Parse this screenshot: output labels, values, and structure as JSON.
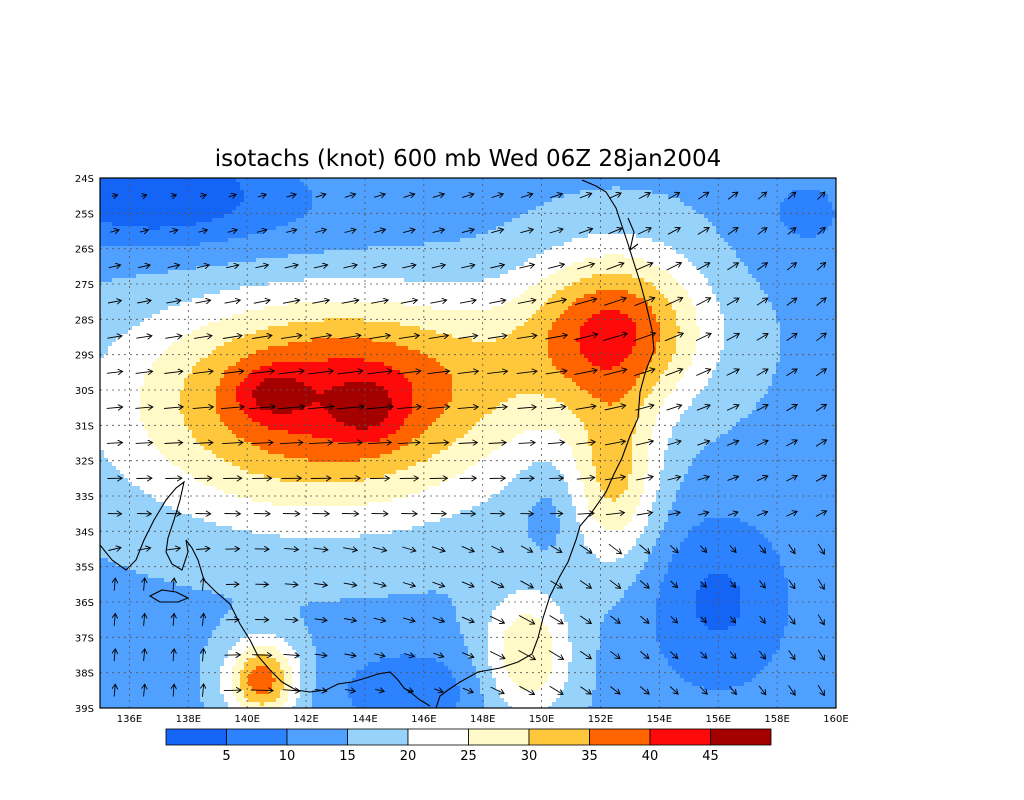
{
  "title": "isotachs (knot) 600 mb Wed 06Z 28jan2004",
  "lat_labels": [
    "24S",
    "25S",
    "26S",
    "27S",
    "28S",
    "29S",
    "30S",
    "31S",
    "32S",
    "33S",
    "34S",
    "35S",
    "36S",
    "37S",
    "38S",
    "39S"
  ],
  "lon_labels": [
    "136E",
    "138E",
    "140E",
    "142E",
    "144E",
    "146E",
    "148E",
    "150E",
    "152E",
    "154E",
    "156E",
    "158E",
    "160E"
  ],
  "colorbar": {
    "colors": [
      "#1464f5",
      "#2d82ff",
      "#50a0ff",
      "#96d2fa",
      "#ffffff",
      "#fffac8",
      "#ffc83c",
      "#ff6400",
      "#ff0a0a",
      "#a50000"
    ],
    "labels": [
      "5",
      "10",
      "15",
      "20",
      "25",
      "30",
      "35",
      "40",
      "45"
    ]
  },
  "chart_data": {
    "type": "heatmap",
    "title": "isotachs (knot) 600 mb Wed 06Z 28jan2004",
    "xlim": [
      135,
      160
    ],
    "ylim": [
      -39,
      -24
    ],
    "xticks": [
      136,
      138,
      140,
      142,
      144,
      146,
      148,
      150,
      152,
      154,
      156,
      158,
      160
    ],
    "yticks": [
      -24,
      -25,
      -26,
      -27,
      -28,
      -29,
      -30,
      -31,
      -32,
      -33,
      -34,
      -35,
      -36,
      -37,
      -38,
      -39
    ],
    "levels": [
      5,
      10,
      15,
      20,
      25,
      30,
      35,
      40,
      45
    ],
    "grid": true,
    "wind_core_max_knots": 45,
    "wind_core_centers": [
      [
        140.8,
        -30.1
      ],
      [
        144.1,
        -30.6
      ]
    ]
  }
}
